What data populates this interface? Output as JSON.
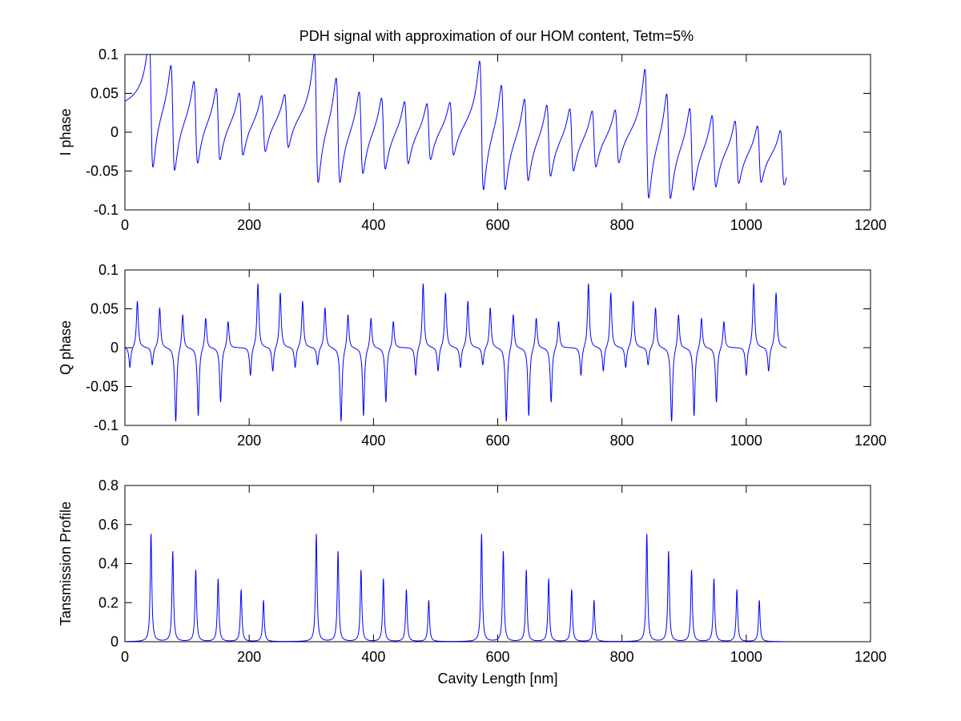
{
  "figure": {
    "title": "PDH signal with approximation of our HOM content, Tetm=5%",
    "line_color": "#0000ff",
    "axis_color": "#000000",
    "background": "#ffffff"
  },
  "chart_data": [
    {
      "type": "line",
      "name": "i-phase",
      "title": "PDH signal with approximation of our HOM content, Tetm=5%",
      "xlabel": "",
      "ylabel": "I phase",
      "xlim": [
        0,
        1200
      ],
      "ylim": [
        -0.1,
        0.1
      ],
      "xticks": [
        0,
        200,
        400,
        600,
        800,
        1000,
        1200
      ],
      "xtick_labels": [
        "0",
        "200",
        "400",
        "600",
        "800",
        "1000",
        "1200"
      ],
      "yticks": [
        -0.1,
        -0.05,
        0,
        0.05,
        0.1
      ],
      "ytick_labels": [
        "-0.1",
        "-0.05",
        "0",
        "0.05",
        "0.1"
      ],
      "grid": false,
      "series_domain": [
        0,
        1065
      ],
      "group_starts": [
        42,
        308,
        574,
        840
      ],
      "peak_offsets": [
        0,
        35,
        72,
        108,
        145,
        181,
        218
      ],
      "peak_amplitudes": [
        0.085,
        0.07,
        0.055,
        0.048,
        0.042,
        0.038,
        0.036
      ],
      "linewidth": 3.2,
      "shape": "dispersive"
    },
    {
      "type": "line",
      "name": "q-phase",
      "title": "",
      "xlabel": "",
      "ylabel": "Q phase",
      "xlim": [
        0,
        1200
      ],
      "ylim": [
        -0.1,
        0.1
      ],
      "xticks": [
        0,
        200,
        400,
        600,
        800,
        1000,
        1200
      ],
      "xtick_labels": [
        "0",
        "200",
        "400",
        "600",
        "800",
        "1000",
        "1200"
      ],
      "yticks": [
        -0.1,
        -0.05,
        0,
        0.05,
        0.1
      ],
      "ytick_labels": [
        "-0.1",
        "-0.05",
        "0",
        "0.05",
        "0.1"
      ],
      "grid": false,
      "series_domain": [
        0,
        1065
      ],
      "group_starts": [
        -52,
        214,
        480,
        746,
        1012
      ],
      "peak_offsets": [
        0,
        36,
        72,
        108,
        145,
        182,
        218
      ],
      "peak_amplitudes": [
        0.083,
        0.071,
        0.06,
        0.052,
        0.045,
        0.04,
        0.035
      ],
      "sidelobe_offset": 12,
      "sidelobe_ratio": 0.45,
      "dip_offsets": [
        134,
        170,
        206
      ],
      "dip_depths": [
        0.08,
        0.07,
        0.055
      ],
      "linewidth": 1.8,
      "shape": "antisymmetric"
    },
    {
      "type": "line",
      "name": "transmission",
      "title": "",
      "xlabel": "Cavity Length [nm]",
      "ylabel": "Tansmission Profile",
      "xlim": [
        0,
        1200
      ],
      "ylim": [
        0,
        0.8
      ],
      "xticks": [
        0,
        200,
        400,
        600,
        800,
        1000,
        1200
      ],
      "xtick_labels": [
        "0",
        "200",
        "400",
        "600",
        "800",
        "1000",
        "1200"
      ],
      "yticks": [
        0,
        0.2,
        0.4,
        0.6,
        0.8
      ],
      "ytick_labels": [
        "0",
        "0.2",
        "0.4",
        "0.6",
        "0.8"
      ],
      "grid": false,
      "series_domain": [
        0,
        1065
      ],
      "group_starts": [
        42,
        308,
        574,
        840
      ],
      "peak_offsets": [
        0,
        35,
        72,
        108,
        145,
        181
      ],
      "peak_values": [
        0.55,
        0.46,
        0.365,
        0.32,
        0.265,
        0.21
      ],
      "linewidth": 1.5,
      "shape": "lorentzian"
    }
  ]
}
